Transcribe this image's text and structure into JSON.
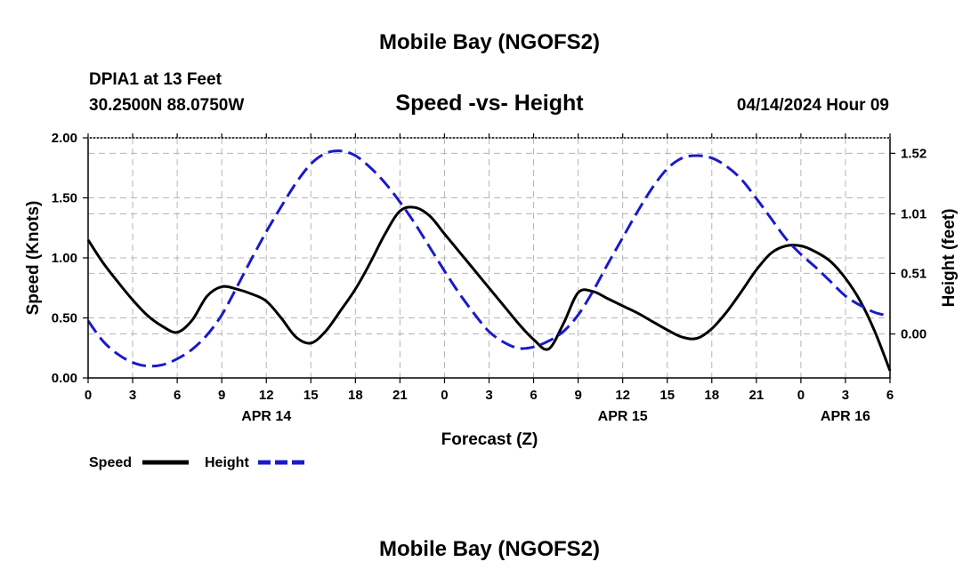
{
  "header": {
    "title_top": "Mobile Bay (NGOFS2)",
    "station": "DPIA1 at 13 Feet",
    "coords": "30.2500N  88.0750W",
    "plot_title": "Speed -vs- Height",
    "timestamp": "04/14/2024 Hour 09",
    "title_bottom": "Mobile Bay (NGOFS2)"
  },
  "colors": {
    "speed": "#000000",
    "height": "#1a1ac8",
    "grid": "#b4b4b4"
  },
  "chart_data": {
    "type": "line",
    "title": "Speed -vs- Height",
    "xlabel": "Forecast (Z)",
    "ylabel_left": "Speed (Knots)",
    "ylabel_right": "Height (feet)",
    "x_unit": "hours from 04/14 00Z",
    "xlim": [
      0,
      54
    ],
    "ylim_left": [
      0,
      2
    ],
    "ylim_right": [
      -0.37,
      1.65
    ],
    "x_ticks": [
      0,
      3,
      6,
      9,
      12,
      15,
      18,
      21,
      24,
      27,
      30,
      33,
      36,
      39,
      42,
      45,
      48,
      51,
      54
    ],
    "x_tick_labels": [
      "0",
      "3",
      "6",
      "9",
      "12",
      "15",
      "18",
      "21",
      "0",
      "3",
      "6",
      "9",
      "12",
      "15",
      "18",
      "21",
      "0",
      "3",
      "6"
    ],
    "date_labels": [
      {
        "x": 12,
        "label": "APR 14"
      },
      {
        "x": 36,
        "label": "APR 15"
      },
      {
        "x": 51,
        "label": "APR 16"
      }
    ],
    "y_left_ticks": [
      0,
      0.5,
      1,
      1.5,
      2
    ],
    "y_left_tick_labels": [
      "0.00",
      "0.50",
      "1.00",
      "1.50",
      "2.00"
    ],
    "y_right_ticks": [
      0,
      0.51,
      1.01,
      1.52
    ],
    "y_right_tick_labels": [
      "0.00",
      "0.51",
      "1.01",
      "1.52"
    ],
    "grid": true,
    "legend_position": "bottom-left",
    "series": [
      {
        "name": "Speed",
        "axis": "left",
        "style": "solid",
        "x": [
          0,
          1,
          2,
          3,
          4,
          5,
          6,
          7,
          8,
          9,
          10,
          11,
          12,
          13,
          14,
          15,
          16,
          17,
          18,
          19,
          20,
          21,
          22,
          23,
          24,
          25,
          26,
          27,
          28,
          29,
          30,
          31,
          32,
          33,
          34,
          35,
          36,
          37,
          38,
          39,
          40,
          41,
          42,
          43,
          44,
          45,
          46,
          47,
          48,
          49,
          50,
          51,
          52,
          53,
          54
        ],
        "values": [
          1.15,
          0.96,
          0.8,
          0.65,
          0.52,
          0.43,
          0.38,
          0.48,
          0.68,
          0.76,
          0.74,
          0.7,
          0.64,
          0.5,
          0.34,
          0.29,
          0.39,
          0.56,
          0.74,
          0.96,
          1.2,
          1.39,
          1.42,
          1.35,
          1.2,
          1.05,
          0.9,
          0.75,
          0.6,
          0.45,
          0.32,
          0.24,
          0.45,
          0.71,
          0.72,
          0.66,
          0.6,
          0.54,
          0.47,
          0.4,
          0.34,
          0.33,
          0.41,
          0.55,
          0.72,
          0.9,
          1.04,
          1.1,
          1.1,
          1.05,
          0.97,
          0.83,
          0.64,
          0.38,
          0.06
        ]
      },
      {
        "name": "Height",
        "axis": "right",
        "style": "dashed",
        "x": [
          0,
          1,
          2,
          3,
          4,
          5,
          6,
          7,
          8,
          9,
          10,
          11,
          12,
          13,
          14,
          15,
          16,
          17,
          18,
          19,
          20,
          21,
          22,
          23,
          24,
          25,
          26,
          27,
          28,
          29,
          30,
          31,
          32,
          33,
          34,
          35,
          36,
          37,
          38,
          39,
          40,
          41,
          42,
          43,
          44,
          45,
          46,
          47,
          48,
          49,
          50,
          51,
          52,
          53,
          54
        ],
        "values": [
          0.11,
          -0.06,
          -0.17,
          -0.24,
          -0.27,
          -0.26,
          -0.21,
          -0.13,
          -0.01,
          0.16,
          0.39,
          0.63,
          0.86,
          1.07,
          1.27,
          1.43,
          1.52,
          1.54,
          1.5,
          1.4,
          1.27,
          1.11,
          0.93,
          0.73,
          0.53,
          0.34,
          0.17,
          0.02,
          -0.07,
          -0.12,
          -0.11,
          -0.06,
          0.02,
          0.16,
          0.36,
          0.59,
          0.81,
          1.03,
          1.23,
          1.39,
          1.48,
          1.5,
          1.48,
          1.41,
          1.3,
          1.14,
          0.97,
          0.8,
          0.67,
          0.56,
          0.44,
          0.32,
          0.24,
          0.18,
          0.15
        ]
      }
    ]
  }
}
